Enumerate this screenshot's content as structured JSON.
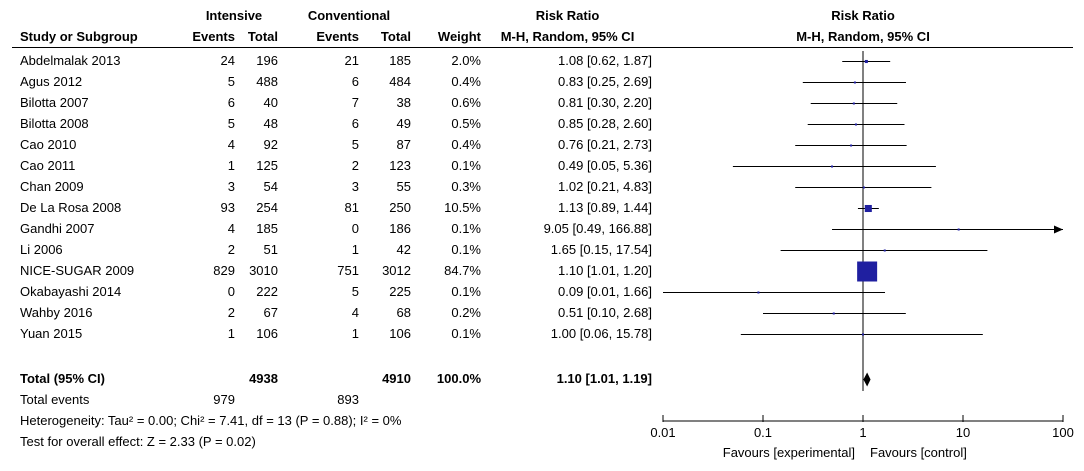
{
  "headers": {
    "group1": "Intensive",
    "group2": "Conventional",
    "rr_left": "Risk Ratio",
    "rr_right": "Risk Ratio",
    "study": "Study or Subgroup",
    "events1": "Events",
    "total1": "Total",
    "events2": "Events",
    "total2": "Total",
    "weight": "Weight",
    "method_left": "M-H, Random, 95% CI",
    "method_right": "M-H, Random, 95% CI"
  },
  "studies": [
    {
      "name": "Abdelmalak 2013",
      "e1": "24",
      "t1": "196",
      "e2": "21",
      "t2": "185",
      "weight": "2.0%",
      "ci": "1.08 [0.62, 1.87]"
    },
    {
      "name": "Agus 2012",
      "e1": "5",
      "t1": "488",
      "e2": "6",
      "t2": "484",
      "weight": "0.4%",
      "ci": "0.83 [0.25, 2.69]"
    },
    {
      "name": "Bilotta 2007",
      "e1": "6",
      "t1": "40",
      "e2": "7",
      "t2": "38",
      "weight": "0.6%",
      "ci": "0.81 [0.30, 2.20]"
    },
    {
      "name": "Bilotta 2008",
      "e1": "5",
      "t1": "48",
      "e2": "6",
      "t2": "49",
      "weight": "0.5%",
      "ci": "0.85 [0.28, 2.60]"
    },
    {
      "name": "Cao 2010",
      "e1": "4",
      "t1": "92",
      "e2": "5",
      "t2": "87",
      "weight": "0.4%",
      "ci": "0.76 [0.21, 2.73]"
    },
    {
      "name": "Cao 2011",
      "e1": "1",
      "t1": "125",
      "e2": "2",
      "t2": "123",
      "weight": "0.1%",
      "ci": "0.49 [0.05, 5.36]"
    },
    {
      "name": "Chan 2009",
      "e1": "3",
      "t1": "54",
      "e2": "3",
      "t2": "55",
      "weight": "0.3%",
      "ci": "1.02 [0.21, 4.83]"
    },
    {
      "name": "De La Rosa 2008",
      "e1": "93",
      "t1": "254",
      "e2": "81",
      "t2": "250",
      "weight": "10.5%",
      "ci": "1.13 [0.89, 1.44]"
    },
    {
      "name": "Gandhi 2007",
      "e1": "4",
      "t1": "185",
      "e2": "0",
      "t2": "186",
      "weight": "0.1%",
      "ci": "9.05 [0.49, 166.88]"
    },
    {
      "name": "Li 2006",
      "e1": "2",
      "t1": "51",
      "e2": "1",
      "t2": "42",
      "weight": "0.1%",
      "ci": "1.65 [0.15, 17.54]"
    },
    {
      "name": "NICE-SUGAR 2009",
      "e1": "829",
      "t1": "3010",
      "e2": "751",
      "t2": "3012",
      "weight": "84.7%",
      "ci": "1.10 [1.01, 1.20]"
    },
    {
      "name": "Okabayashi 2014",
      "e1": "0",
      "t1": "222",
      "e2": "5",
      "t2": "225",
      "weight": "0.1%",
      "ci": "0.09 [0.01, 1.66]"
    },
    {
      "name": "Wahby 2016",
      "e1": "2",
      "t1": "67",
      "e2": "4",
      "t2": "68",
      "weight": "0.2%",
      "ci": "0.51 [0.10, 2.68]"
    },
    {
      "name": "Yuan 2015",
      "e1": "1",
      "t1": "106",
      "e2": "1",
      "t2": "106",
      "weight": "0.1%",
      "ci": "1.00 [0.06, 15.78]"
    }
  ],
  "total": {
    "label": "Total (95% CI)",
    "t1": "4938",
    "t2": "4910",
    "weight": "100.0%",
    "ci": "1.10 [1.01, 1.19]"
  },
  "total_events": {
    "label": "Total events",
    "e1": "979",
    "e2": "893"
  },
  "heterogeneity": "Heterogeneity: Tau² = 0.00; Chi² = 7.41, df = 13 (P = 0.88); I² = 0%",
  "overall_effect": "Test for overall effect: Z = 2.33 (P = 0.02)",
  "favours_left": "Favours [experimental]",
  "favours_right": "Favours [control]",
  "colors": {
    "marker": "#1f1fa0",
    "diamond": "#000000",
    "line": "#000000"
  },
  "chart_data": {
    "type": "forest",
    "title": "Risk Ratio",
    "subtitle": "M-H, Random, 95% CI",
    "scale": "log",
    "xlim": [
      0.01,
      100
    ],
    "xticks": [
      "0.01",
      "0.1",
      "1",
      "10",
      "100"
    ],
    "xlabel_left": "Favours [experimental]",
    "xlabel_right": "Favours [control]",
    "series": [
      {
        "name": "Abdelmalak 2013",
        "rr": 1.08,
        "lower": 0.62,
        "upper": 1.87,
        "weight": 2.0
      },
      {
        "name": "Agus 2012",
        "rr": 0.83,
        "lower": 0.25,
        "upper": 2.69,
        "weight": 0.4
      },
      {
        "name": "Bilotta 2007",
        "rr": 0.81,
        "lower": 0.3,
        "upper": 2.2,
        "weight": 0.6
      },
      {
        "name": "Bilotta 2008",
        "rr": 0.85,
        "lower": 0.28,
        "upper": 2.6,
        "weight": 0.5
      },
      {
        "name": "Cao 2010",
        "rr": 0.76,
        "lower": 0.21,
        "upper": 2.73,
        "weight": 0.4
      },
      {
        "name": "Cao 2011",
        "rr": 0.49,
        "lower": 0.05,
        "upper": 5.36,
        "weight": 0.1
      },
      {
        "name": "Chan 2009",
        "rr": 1.02,
        "lower": 0.21,
        "upper": 4.83,
        "weight": 0.3
      },
      {
        "name": "De La Rosa 2008",
        "rr": 1.13,
        "lower": 0.89,
        "upper": 1.44,
        "weight": 10.5
      },
      {
        "name": "Gandhi 2007",
        "rr": 9.05,
        "lower": 0.49,
        "upper": 166.88,
        "weight": 0.1
      },
      {
        "name": "Li 2006",
        "rr": 1.65,
        "lower": 0.15,
        "upper": 17.54,
        "weight": 0.1
      },
      {
        "name": "NICE-SUGAR 2009",
        "rr": 1.1,
        "lower": 1.01,
        "upper": 1.2,
        "weight": 84.7
      },
      {
        "name": "Okabayashi 2014",
        "rr": 0.09,
        "lower": 0.01,
        "upper": 1.66,
        "weight": 0.1
      },
      {
        "name": "Wahby 2016",
        "rr": 0.51,
        "lower": 0.1,
        "upper": 2.68,
        "weight": 0.2
      },
      {
        "name": "Yuan 2015",
        "rr": 1.0,
        "lower": 0.06,
        "upper": 15.78,
        "weight": 0.1
      }
    ],
    "pooled": {
      "rr": 1.1,
      "lower": 1.01,
      "upper": 1.19
    }
  }
}
